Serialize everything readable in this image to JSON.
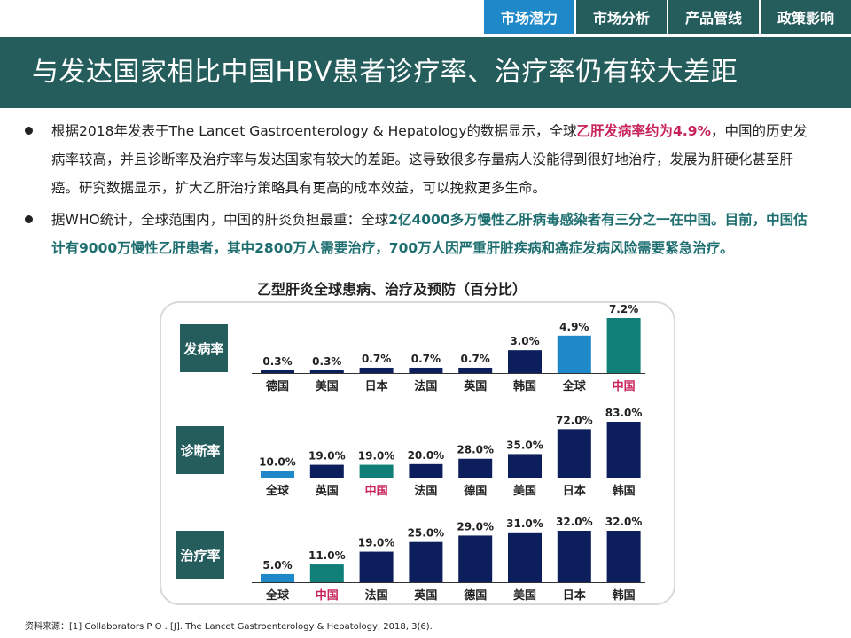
{
  "nav": {
    "tabs": [
      {
        "label": "市场潜力",
        "active": true
      },
      {
        "label": "市场分析",
        "active": false
      },
      {
        "label": "产品管线",
        "active": false
      },
      {
        "label": "政策影响",
        "active": false
      }
    ]
  },
  "page_title": "与发达国家相比中国HBV患者诊疗率、治疗率仍有较大差距",
  "bullets": [
    {
      "p1": "根据2018年发表于The Lancet Gastroenterology & Hepatology的数据显示，全球",
      "h1": "乙肝发病率约为4.9%",
      "p2": "，中国的历史发病率较高，并且诊断率及治疗率与发达国家有较大的差距。这导致很多存量病人没能得到很好地治疗，发展为肝硬化甚至肝癌。研究数据显示，扩大乙肝治疗策略具有更高的成本效益，可以挽救更多生命。"
    },
    {
      "p1": "据WHO统计，全球范围内，中国的肝炎负担最重：全球",
      "h1": "2亿4000多万慢性乙肝病毒感染者有三分之一在中国。目前，中国估计有9000万慢性乙肝患者，其中2800万人需要治疗，700万人因严重肝脏疾病和癌症发病风险需要紧急治疗。"
    }
  ],
  "colors": {
    "dark_teal": "#255d5c",
    "accent_blue": "#1f88c8",
    "navy": "#0c1f5c",
    "teal_bar": "#0f7f77",
    "red_label": "#c8245a"
  },
  "chart_data": {
    "type": "bar",
    "title": "乙型肝炎全球患病、治疗及预防（百分比）",
    "unit": "%",
    "ylim": [
      0,
      100
    ],
    "panels": [
      {
        "label": "发病率",
        "categories": [
          "德国",
          "美国",
          "日本",
          "法国",
          "英国",
          "韩国",
          "全球",
          "中国"
        ],
        "values": [
          0.3,
          0.3,
          0.7,
          0.7,
          0.7,
          3.0,
          4.9,
          7.2
        ],
        "value_labels": [
          "0.3%",
          "0.3%",
          "0.7%",
          "0.7%",
          "0.7%",
          "3.0%",
          "4.9%",
          "7.2%"
        ],
        "ylim": [
          0,
          7.2
        ]
      },
      {
        "label": "诊断率",
        "categories": [
          "全球",
          "英国",
          "中国",
          "法国",
          "德国",
          "美国",
          "日本",
          "韩国"
        ],
        "values": [
          10.0,
          19.0,
          19.0,
          20.0,
          28.0,
          35.0,
          72.0,
          83.0
        ],
        "value_labels": [
          "10.0%",
          "19.0%",
          "19.0%",
          "20.0%",
          "28.0%",
          "35.0%",
          "72.0%",
          "83.0%"
        ],
        "ylim": [
          0,
          83
        ]
      },
      {
        "label": "治疗率",
        "categories": [
          "全球",
          "中国",
          "法国",
          "英国",
          "德国",
          "美国",
          "日本",
          "韩国"
        ],
        "values": [
          5.0,
          11.0,
          19.0,
          25.0,
          29.0,
          31.0,
          32.0,
          32.0
        ],
        "value_labels": [
          "5.0%",
          "11.0%",
          "19.0%",
          "25.0%",
          "29.0%",
          "31.0%",
          "32.0%",
          "32.0%"
        ],
        "ylim": [
          0,
          32
        ]
      }
    ]
  },
  "source": "资料来源：[1] Collaborators P O . [J]. The Lancet Gastroenterology & Hepatology, 2018, 3(6)."
}
